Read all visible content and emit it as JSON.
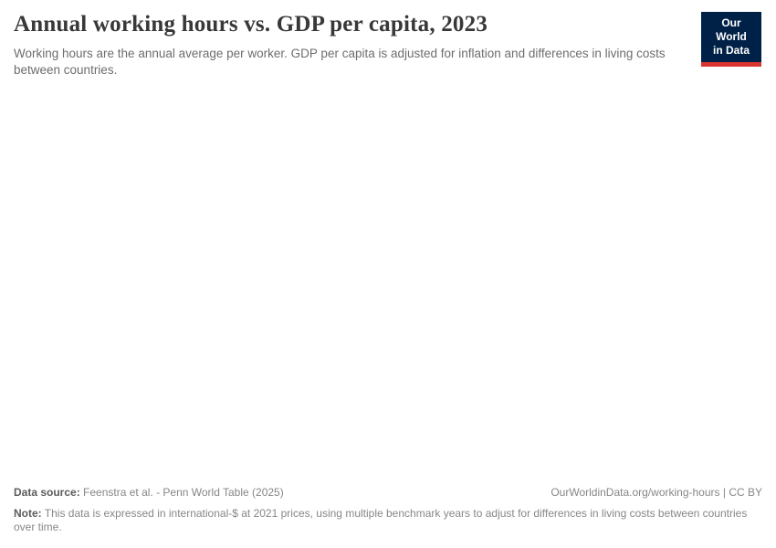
{
  "header": {
    "title": "Annual working hours vs. GDP per capita, 2023",
    "subtitle": "Working hours are the annual average per worker. GDP per capita is adjusted for inflation and differences in living costs between countries.",
    "logo": {
      "line1": "Our World",
      "line2": "in Data",
      "background_color": "#002147",
      "accent_color": "#d8352e",
      "text_color": "#ffffff"
    }
  },
  "chart_data": {
    "type": "scatter",
    "title": "Annual working hours vs. GDP per capita, 2023",
    "series": [],
    "plot_area_rendered": false,
    "layout_hints": {
      "background": "#ffffff",
      "grid": false,
      "axes_visible": false
    }
  },
  "footer": {
    "data_source_label": "Data source:",
    "data_source_value": "Feenstra et al. - Penn World Table (2025)",
    "link_text": "OurWorldinData.org/working-hours | CC BY",
    "note_label": "Note:",
    "note_value": "This data is expressed in international-$ at 2021 prices, using multiple benchmark years to adjust for differences in living costs between countries over time."
  }
}
